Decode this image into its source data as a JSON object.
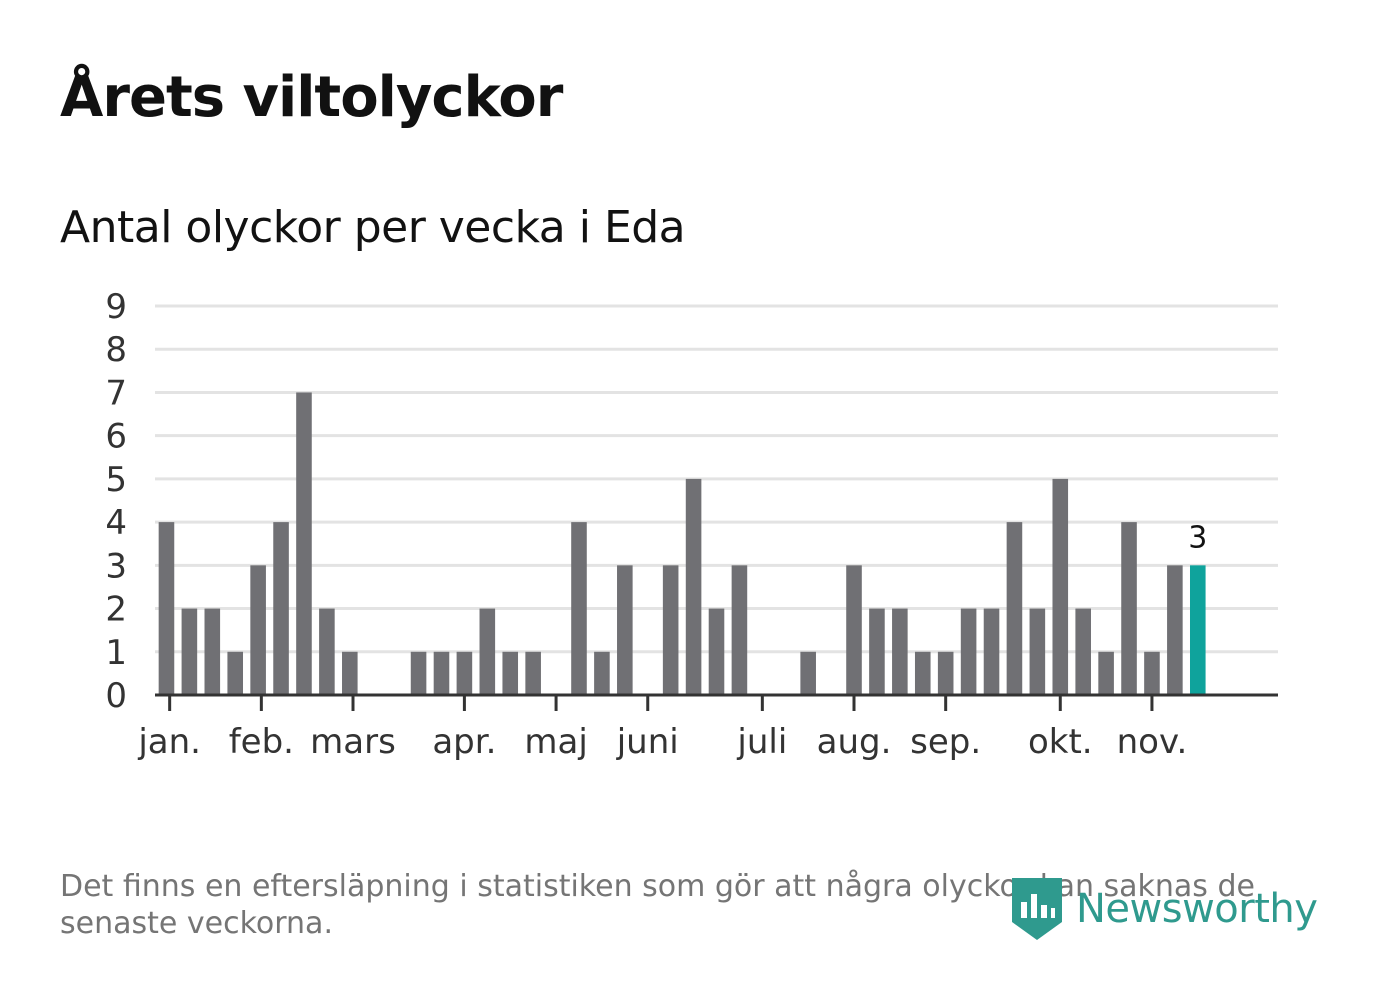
{
  "title": "Årets viltolyckor",
  "subtitle": "Antal olyckor per vecka i Eda",
  "footnote": "Det finns en eftersläpning i statistiken som gör att några olyckor kan saknas de senaste veckorna.",
  "logo": {
    "text": "Newsworthy"
  },
  "colors": {
    "bar": "#707074",
    "highlight": "#0fa39c",
    "grid": "#e3e3e3",
    "axis": "#333333",
    "logo": "#2f9a8e"
  },
  "chart_data": {
    "type": "bar",
    "title": "Antal olyckor per vecka i Eda",
    "xlabel": "",
    "ylabel": "",
    "ylim": [
      0,
      9
    ],
    "yticks": [
      0,
      1,
      2,
      3,
      4,
      5,
      6,
      7,
      8,
      9
    ],
    "x_min": 0.5,
    "x_max": 49.5,
    "weeks": [
      1,
      2,
      3,
      4,
      5,
      6,
      7,
      8,
      9,
      10,
      11,
      12,
      13,
      14,
      15,
      16,
      17,
      18,
      19,
      20,
      21,
      22,
      23,
      24,
      25,
      26,
      27,
      28,
      29,
      30,
      31,
      32,
      33,
      34,
      35,
      36,
      37,
      38,
      39,
      40,
      41,
      42,
      43,
      44,
      45,
      46
    ],
    "values": [
      4,
      2,
      2,
      1,
      3,
      4,
      7,
      2,
      1,
      0,
      0,
      1,
      1,
      1,
      2,
      1,
      1,
      0,
      4,
      1,
      3,
      0,
      3,
      5,
      2,
      3,
      0,
      0,
      1,
      0,
      3,
      2,
      2,
      1,
      1,
      2,
      2,
      4,
      2,
      5,
      2,
      1,
      4,
      1,
      3,
      3
    ],
    "highlight_index": 45,
    "highlight_label": "3",
    "month_ticks": [
      {
        "label": "jan.",
        "x": 1.14
      },
      {
        "label": "feb.",
        "x": 5.14
      },
      {
        "label": "mars",
        "x": 9.14
      },
      {
        "label": "apr.",
        "x": 14.0
      },
      {
        "label": "maj",
        "x": 18.0
      },
      {
        "label": "juni",
        "x": 22.0
      },
      {
        "label": "juli",
        "x": 27.0
      },
      {
        "label": "aug.",
        "x": 31.0
      },
      {
        "label": "sep.",
        "x": 35.0
      },
      {
        "label": "okt.",
        "x": 40.0
      },
      {
        "label": "nov.",
        "x": 44.0
      }
    ]
  }
}
